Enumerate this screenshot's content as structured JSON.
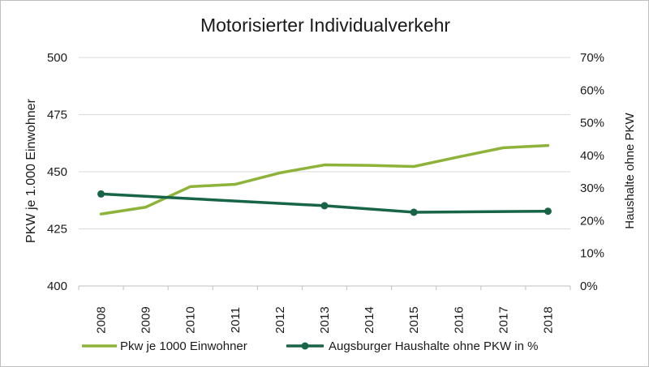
{
  "chart_data": {
    "type": "line",
    "title": "Motorisierter Individualverkehr",
    "categories": [
      "2008",
      "2009",
      "2010",
      "2011",
      "2012",
      "2013",
      "2014",
      "2015",
      "2016",
      "2017",
      "2018"
    ],
    "y_left": {
      "label": "PKW je 1.000 Einwohner",
      "range": [
        400,
        500
      ],
      "ticks": [
        "400",
        "425",
        "450",
        "475",
        "500"
      ]
    },
    "y_right": {
      "label": "Haushalte ohne PKW",
      "range": [
        0,
        70
      ],
      "ticks": [
        "0%",
        "10%",
        "20%",
        "30%",
        "40%",
        "50%",
        "60%",
        "70%"
      ]
    },
    "grid": true,
    "legend_position": "bottom",
    "series": [
      {
        "name": "Pkw je 1000 Einwohner",
        "axis": "left",
        "color": "#8db33a",
        "markers": false,
        "values": [
          431.5,
          434.5,
          443.5,
          444.5,
          449.5,
          453,
          452.8,
          452.3,
          456.5,
          460.5,
          461.5
        ]
      },
      {
        "name": "Augsburger Haushalte ohne PKW in %",
        "axis": "right",
        "color": "#176446",
        "markers": true,
        "values": [
          28.2,
          null,
          null,
          null,
          null,
          24.6,
          null,
          22.6,
          null,
          null,
          22.9
        ]
      }
    ]
  }
}
